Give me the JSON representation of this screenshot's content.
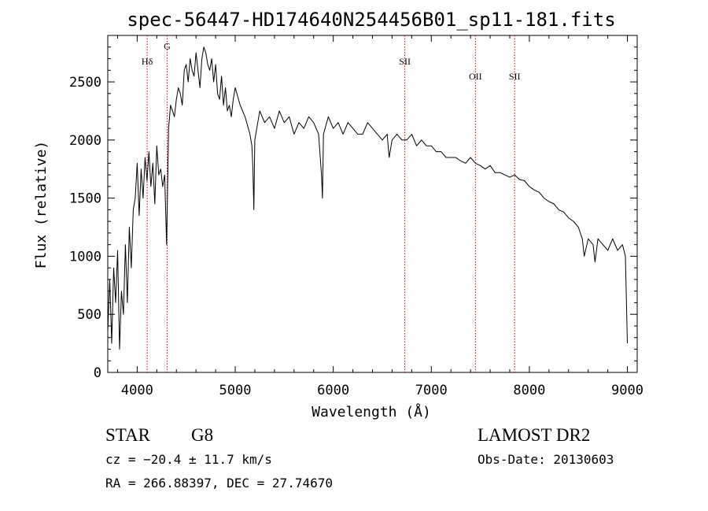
{
  "chart_data": {
    "type": "line",
    "title": "spec-56447-HD174640N254456B01_sp11-181.fits",
    "xlabel": "Wavelength (Å)",
    "ylabel": "Flux (relative)",
    "xlim": [
      3700,
      9100
    ],
    "ylim": [
      0,
      2900
    ],
    "xticks": [
      4000,
      5000,
      6000,
      7000,
      8000,
      9000
    ],
    "yticks": [
      0,
      500,
      1000,
      1500,
      2000,
      2500
    ],
    "grid": false,
    "series": [
      {
        "x": [
          3700,
          3720,
          3740,
          3760,
          3780,
          3800,
          3820,
          3840,
          3860,
          3880,
          3900,
          3920,
          3940,
          3960,
          3980,
          4000,
          4020,
          4040,
          4060,
          4080,
          4100,
          4120,
          4140,
          4160,
          4180,
          4200,
          4220,
          4240,
          4260,
          4280,
          4300,
          4320,
          4340,
          4360,
          4380,
          4400,
          4420,
          4440,
          4460,
          4480,
          4500,
          4520,
          4540,
          4560,
          4580,
          4600,
          4620,
          4640,
          4660,
          4680,
          4700,
          4720,
          4740,
          4760,
          4780,
          4800,
          4820,
          4840,
          4860,
          4880,
          4900,
          4920,
          4940,
          4960,
          4980,
          5000,
          5050,
          5100,
          5150,
          5170,
          5180,
          5190,
          5200,
          5250,
          5300,
          5350,
          5400,
          5450,
          5500,
          5550,
          5600,
          5650,
          5700,
          5750,
          5800,
          5850,
          5880,
          5890,
          5900,
          5950,
          6000,
          6050,
          6100,
          6150,
          6200,
          6250,
          6300,
          6350,
          6400,
          6450,
          6500,
          6550,
          6560,
          6570,
          6600,
          6650,
          6700,
          6750,
          6800,
          6850,
          6900,
          6950,
          7000,
          7050,
          7100,
          7150,
          7200,
          7250,
          7300,
          7350,
          7400,
          7450,
          7500,
          7550,
          7600,
          7650,
          7700,
          7750,
          7800,
          7850,
          7900,
          7950,
          8000,
          8050,
          8100,
          8150,
          8200,
          8250,
          8300,
          8350,
          8400,
          8450,
          8500,
          8540,
          8560,
          8600,
          8650,
          8670,
          8700,
          8750,
          8800,
          8850,
          8900,
          8950,
          8980,
          9000
        ],
        "y": [
          350,
          800,
          250,
          900,
          600,
          1050,
          200,
          700,
          500,
          1100,
          600,
          1250,
          900,
          1400,
          1500,
          1800,
          1350,
          1750,
          1500,
          1850,
          1650,
          1900,
          1600,
          1800,
          1450,
          1950,
          1700,
          1750,
          1600,
          1700,
          1100,
          2100,
          2300,
          2250,
          2200,
          2350,
          2450,
          2400,
          2300,
          2600,
          2650,
          2500,
          2700,
          2600,
          2550,
          2750,
          2600,
          2450,
          2700,
          2800,
          2750,
          2650,
          2600,
          2700,
          2500,
          2650,
          2400,
          2350,
          2550,
          2300,
          2450,
          2250,
          2300,
          2200,
          2350,
          2450,
          2300,
          2200,
          2050,
          1950,
          1750,
          1400,
          2000,
          2250,
          2150,
          2200,
          2100,
          2250,
          2150,
          2200,
          2050,
          2150,
          2100,
          2200,
          2150,
          2050,
          1700,
          1500,
          2050,
          2200,
          2100,
          2150,
          2050,
          2150,
          2100,
          2050,
          2050,
          2150,
          2100,
          2050,
          2000,
          2050,
          1950,
          1850,
          2000,
          2050,
          2000,
          2000,
          2050,
          1950,
          2000,
          1950,
          1950,
          1900,
          1900,
          1850,
          1850,
          1850,
          1820,
          1800,
          1850,
          1800,
          1780,
          1750,
          1780,
          1720,
          1720,
          1700,
          1680,
          1700,
          1660,
          1650,
          1600,
          1570,
          1550,
          1500,
          1470,
          1450,
          1400,
          1380,
          1330,
          1300,
          1250,
          1150,
          1000,
          1150,
          1100,
          950,
          1150,
          1100,
          1050,
          1150,
          1050,
          1100,
          1000,
          250
        ]
      }
    ],
    "reference_lines": [
      {
        "label": "Hδ",
        "x": 4102,
        "label_y": 2650
      },
      {
        "label": "G",
        "x": 4305,
        "label_y": 2780
      },
      {
        "label": "SII",
        "x": 6730,
        "label_y": 2650
      },
      {
        "label": "OII",
        "x": 7450,
        "label_y": 2520
      },
      {
        "label": "SII",
        "x": 7850,
        "label_y": 2520
      }
    ],
    "line_color": "#000000",
    "reference_line_color": "#cc0000"
  },
  "footer": {
    "object_type": "STAR",
    "spectral_class": "G8",
    "survey": "LAMOST DR2",
    "cz": "cz = −20.4 ± 11.7 km/s",
    "obs_date": "Obs-Date: 20130603",
    "coords": "RA = 266.88397, DEC =  27.74670"
  }
}
